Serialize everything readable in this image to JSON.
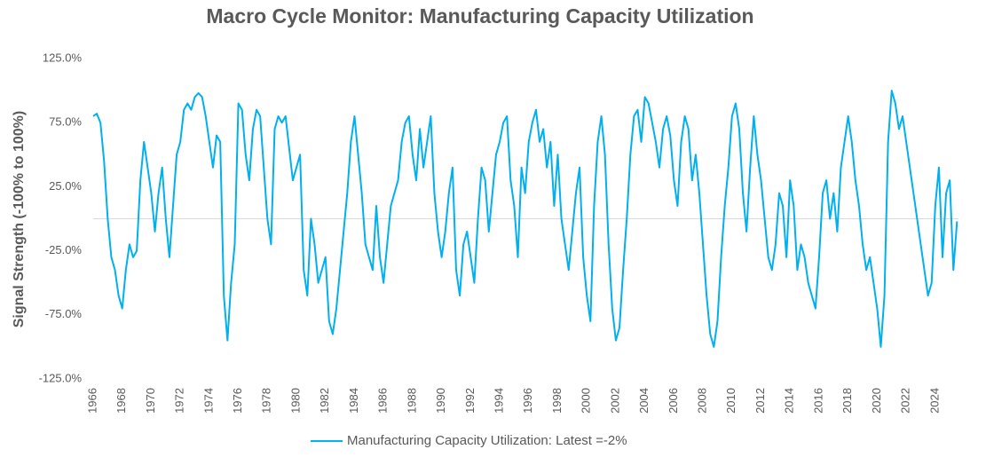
{
  "chart_data": {
    "type": "line",
    "title": "Macro Cycle Monitor: Manufacturing Capacity Utilization",
    "y_label": "Signal Strength (-100% to 100%)",
    "x": [
      1966,
      1966.25,
      1966.5,
      1966.75,
      1967,
      1967.25,
      1967.5,
      1967.75,
      1968,
      1968.25,
      1968.5,
      1968.75,
      1969,
      1969.25,
      1969.5,
      1969.75,
      1970,
      1970.25,
      1970.5,
      1970.75,
      1971,
      1971.25,
      1971.5,
      1971.75,
      1972,
      1972.25,
      1972.5,
      1972.75,
      1973,
      1973.25,
      1973.5,
      1973.75,
      1974,
      1974.25,
      1974.5,
      1974.75,
      1975,
      1975.25,
      1975.5,
      1975.75,
      1976,
      1976.25,
      1976.5,
      1976.75,
      1977,
      1977.25,
      1977.5,
      1977.75,
      1978,
      1978.25,
      1978.5,
      1978.75,
      1979,
      1979.25,
      1979.5,
      1979.75,
      1980,
      1980.25,
      1980.5,
      1980.75,
      1981,
      1981.25,
      1981.5,
      1981.75,
      1982,
      1982.25,
      1982.5,
      1982.75,
      1983,
      1983.25,
      1983.5,
      1983.75,
      1984,
      1984.25,
      1984.5,
      1984.75,
      1985,
      1985.25,
      1985.5,
      1985.75,
      1986,
      1986.25,
      1986.5,
      1986.75,
      1987,
      1987.25,
      1987.5,
      1987.75,
      1988,
      1988.25,
      1988.5,
      1988.75,
      1989,
      1989.25,
      1989.5,
      1989.75,
      1990,
      1990.25,
      1990.5,
      1990.75,
      1991,
      1991.25,
      1991.5,
      1991.75,
      1992,
      1992.25,
      1992.5,
      1992.75,
      1993,
      1993.25,
      1993.5,
      1993.75,
      1994,
      1994.25,
      1994.5,
      1994.75,
      1995,
      1995.25,
      1995.5,
      1995.75,
      1996,
      1996.25,
      1996.5,
      1996.75,
      1997,
      1997.25,
      1997.5,
      1997.75,
      1998,
      1998.25,
      1998.5,
      1998.75,
      1999,
      1999.25,
      1999.5,
      1999.75,
      2000,
      2000.25,
      2000.5,
      2000.75,
      2001,
      2001.25,
      2001.5,
      2001.75,
      2002,
      2002.25,
      2002.5,
      2002.75,
      2003,
      2003.25,
      2003.5,
      2003.75,
      2004,
      2004.25,
      2004.5,
      2004.75,
      2005,
      2005.25,
      2005.5,
      2005.75,
      2006,
      2006.25,
      2006.5,
      2006.75,
      2007,
      2007.25,
      2007.5,
      2007.75,
      2008,
      2008.25,
      2008.5,
      2008.75,
      2009,
      2009.25,
      2009.5,
      2009.75,
      2010,
      2010.25,
      2010.5,
      2010.75,
      2011,
      2011.25,
      2011.5,
      2011.75,
      2012,
      2012.25,
      2012.5,
      2012.75,
      2013,
      2013.25,
      2013.5,
      2013.75,
      2014,
      2014.25,
      2014.5,
      2014.75,
      2015,
      2015.25,
      2015.5,
      2015.75,
      2016,
      2016.25,
      2016.5,
      2016.75,
      2017,
      2017.25,
      2017.5,
      2017.75,
      2018,
      2018.25,
      2018.5,
      2018.75,
      2019,
      2019.25,
      2019.5,
      2019.75,
      2020,
      2020.25,
      2020.5,
      2020.75,
      2021,
      2021.25,
      2021.5,
      2021.75,
      2022,
      2022.25,
      2022.5,
      2022.75,
      2023,
      2023.25,
      2023.5,
      2023.75,
      2024,
      2024.25,
      2024.5,
      2024.75,
      2025,
      2025.25,
      2025.5
    ],
    "series": [
      {
        "name": "Manufacturing Capacity Utilization: Latest =-2%",
        "color": "#00b0f0",
        "values": [
          80,
          82,
          75,
          45,
          0,
          -30,
          -40,
          -60,
          -70,
          -40,
          -20,
          -30,
          -25,
          30,
          60,
          40,
          20,
          -10,
          20,
          40,
          0,
          -30,
          10,
          50,
          60,
          85,
          90,
          85,
          95,
          98,
          95,
          80,
          60,
          40,
          65,
          60,
          -60,
          -95,
          -50,
          -20,
          90,
          85,
          50,
          30,
          70,
          85,
          80,
          40,
          0,
          -20,
          70,
          80,
          75,
          80,
          55,
          30,
          40,
          50,
          -40,
          -60,
          0,
          -20,
          -50,
          -40,
          -30,
          -80,
          -90,
          -70,
          -40,
          -10,
          20,
          60,
          80,
          50,
          20,
          -20,
          -30,
          -40,
          10,
          -30,
          -50,
          -20,
          10,
          20,
          30,
          60,
          75,
          80,
          50,
          30,
          70,
          40,
          60,
          80,
          20,
          -10,
          -30,
          -10,
          20,
          40,
          -40,
          -60,
          -20,
          -10,
          -30,
          -50,
          0,
          40,
          30,
          -10,
          20,
          50,
          60,
          75,
          80,
          30,
          10,
          -30,
          40,
          20,
          60,
          75,
          85,
          60,
          70,
          40,
          60,
          10,
          50,
          0,
          -20,
          -40,
          -10,
          20,
          40,
          -30,
          -60,
          -80,
          10,
          60,
          80,
          50,
          -20,
          -70,
          -95,
          -85,
          -40,
          0,
          50,
          80,
          85,
          60,
          95,
          90,
          75,
          60,
          40,
          70,
          80,
          65,
          30,
          10,
          60,
          80,
          70,
          30,
          50,
          20,
          -20,
          -60,
          -90,
          -100,
          -80,
          -30,
          10,
          40,
          80,
          90,
          70,
          20,
          -10,
          40,
          80,
          50,
          30,
          0,
          -30,
          -40,
          -20,
          20,
          10,
          -30,
          30,
          10,
          -40,
          -20,
          -30,
          -50,
          -60,
          -70,
          -30,
          20,
          30,
          0,
          20,
          -10,
          40,
          60,
          80,
          60,
          30,
          10,
          -20,
          -40,
          -30,
          -50,
          -70,
          -100,
          -60,
          60,
          100,
          90,
          70,
          80,
          60,
          40,
          20,
          0,
          -20,
          -40,
          -60,
          -50,
          10,
          40,
          -30,
          20,
          30,
          -40,
          -2
        ]
      }
    ],
    "xlim": [
      1966,
      2025.6
    ],
    "xticks": [
      1966,
      1968,
      1970,
      1972,
      1974,
      1976,
      1978,
      1980,
      1982,
      1984,
      1986,
      1988,
      1990,
      1992,
      1994,
      1996,
      1998,
      2000,
      2002,
      2004,
      2006,
      2008,
      2010,
      2012,
      2014,
      2016,
      2018,
      2020,
      2022,
      2024
    ],
    "ylim": [
      -125,
      125
    ],
    "yticks": [
      {
        "value": -125,
        "label": "-125.0%"
      },
      {
        "value": -75,
        "label": "-75.0%"
      },
      {
        "value": -25,
        "label": "-25.0%"
      },
      {
        "value": 25,
        "label": "25.0%"
      },
      {
        "value": 75,
        "label": "75.0%"
      },
      {
        "value": 125,
        "label": "125.0%"
      }
    ],
    "legend": "bottom"
  }
}
